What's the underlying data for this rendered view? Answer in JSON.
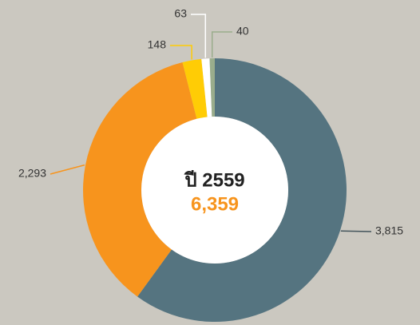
{
  "chart_data": {
    "type": "donut",
    "center_title": "ปี 2559",
    "total": {
      "value": 6359,
      "label": "6,359"
    },
    "values": [
      3815,
      2293,
      148,
      63,
      40
    ],
    "value_labels": [
      "3,815",
      "2,293",
      "148",
      "63",
      "40"
    ],
    "colors": [
      "#557480",
      "#f7941d",
      "#ffcc05",
      "#ffffff",
      "#9aad8c"
    ]
  }
}
